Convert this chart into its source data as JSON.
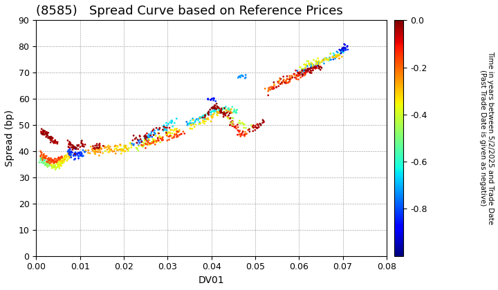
{
  "title": "(8585)   Spread Curve based on Reference Prices",
  "xlabel": "DV01",
  "ylabel": "Spread (bp)",
  "xlim": [
    0.0,
    0.08
  ],
  "ylim": [
    0,
    90
  ],
  "xticks": [
    0.0,
    0.01,
    0.02,
    0.03,
    0.04,
    0.05,
    0.06,
    0.07,
    0.08
  ],
  "yticks": [
    0,
    10,
    20,
    30,
    40,
    50,
    60,
    70,
    80,
    90
  ],
  "colorbar_label_line1": "Time in years between 5/2/2025 and Trade Date",
  "colorbar_label_line2": "(Past Trade Date is given as negative)",
  "clim_min": -1.0,
  "clim_max": 0.0,
  "colorbar_ticks": [
    0.0,
    -0.2,
    -0.4,
    -0.6,
    -0.8
  ],
  "background_color": "#ffffff",
  "grid_color": "#888888",
  "title_fontsize": 13,
  "axis_fontsize": 10,
  "tick_fontsize": 9,
  "marker_size": 4,
  "figsize": [
    7.2,
    4.2
  ],
  "dpi": 100
}
